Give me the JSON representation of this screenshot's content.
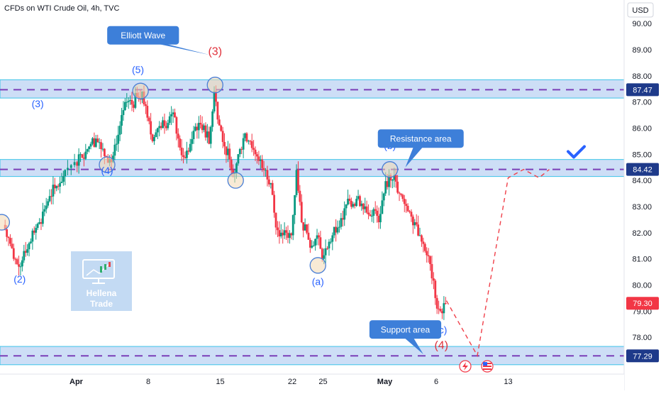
{
  "header": {
    "title": "CFDs on WTI Crude Oil, 4h, TVC",
    "currency_label": "USD"
  },
  "colors": {
    "up": "#089981",
    "down": "#f23645",
    "zone_fill": "#bcd3f3",
    "zone_border": "#3cc4e8",
    "level_dash": "#7b3fb8",
    "wave_label": "#2962ff",
    "wave_label_red": "#e0313b",
    "callout": "#3d7fd9",
    "projection": "#f0404a",
    "check": "#2962ff",
    "price_badge_current": "#f23645",
    "price_badge_level": "#1e3a8a"
  },
  "chart_data": {
    "type": "candlestick",
    "title": "CFDs on WTI Crude Oil, 4h, TVC",
    "ylabel": "USD",
    "ylim": [
      76.7,
      90.9
    ],
    "y_ticks": [
      "78.00",
      "79.00",
      "80.00",
      "81.00",
      "82.00",
      "83.00",
      "84.00",
      "85.00",
      "86.00",
      "87.00",
      "88.00",
      "89.00",
      "90.00"
    ],
    "x_ticks": [
      {
        "label": "Apr",
        "date": "2024-04-01"
      },
      {
        "label": "8",
        "date": "2024-04-08"
      },
      {
        "label": "15",
        "date": "2024-04-15"
      },
      {
        "label": "22",
        "date": "2024-04-22"
      },
      {
        "label": "25",
        "date": "2024-04-25"
      },
      {
        "label": "May",
        "date": "2024-05-01"
      },
      {
        "label": "6",
        "date": "2024-05-06"
      },
      {
        "label": "13",
        "date": "2024-05-13"
      }
    ],
    "price_path": [
      [
        "2024-03-25T00:00",
        82.3
      ],
      [
        "2024-03-25T12:00",
        81.8
      ],
      [
        "2024-03-26T00:00",
        81.0
      ],
      [
        "2024-03-26T12:00",
        80.7
      ],
      [
        "2024-03-27T00:00",
        81.3
      ],
      [
        "2024-03-27T12:00",
        81.6
      ],
      [
        "2024-03-28T00:00",
        82.0
      ],
      [
        "2024-03-28T12:00",
        82.4
      ],
      [
        "2024-03-29T00:00",
        82.9
      ],
      [
        "2024-03-29T12:00",
        83.4
      ],
      [
        "2024-03-30T00:00",
        83.7
      ],
      [
        "2024-03-30T12:00",
        83.9
      ],
      [
        "2024-03-31T00:00",
        84.4
      ],
      [
        "2024-04-01T00:00",
        84.7
      ],
      [
        "2024-04-01T12:00",
        85.0
      ],
      [
        "2024-04-02T00:00",
        85.1
      ],
      [
        "2024-04-02T12:00",
        85.4
      ],
      [
        "2024-04-03T00:00",
        85.6
      ],
      [
        "2024-04-03T12:00",
        85.2
      ],
      [
        "2024-04-04T00:00",
        84.9
      ],
      [
        "2024-04-04T12:00",
        84.7
      ],
      [
        "2024-04-05T00:00",
        85.4
      ],
      [
        "2024-04-05T12:00",
        86.5
      ],
      [
        "2024-04-06T00:00",
        87.0
      ],
      [
        "2024-04-06T12:00",
        86.9
      ],
      [
        "2024-04-07T00:00",
        87.2
      ],
      [
        "2024-04-07T12:00",
        87.4
      ],
      [
        "2024-04-08T00:00",
        86.4
      ],
      [
        "2024-04-08T12:00",
        85.5
      ],
      [
        "2024-04-09T00:00",
        86.0
      ],
      [
        "2024-04-09T12:00",
        86.3
      ],
      [
        "2024-04-10T00:00",
        86.2
      ],
      [
        "2024-04-10T12:00",
        86.6
      ],
      [
        "2024-04-11T00:00",
        85.6
      ],
      [
        "2024-04-11T12:00",
        84.9
      ],
      [
        "2024-04-12T00:00",
        85.1
      ],
      [
        "2024-04-12T12:00",
        85.9
      ],
      [
        "2024-04-13T00:00",
        86.2
      ],
      [
        "2024-04-13T12:00",
        86.1
      ],
      [
        "2024-04-14T00:00",
        85.4
      ],
      [
        "2024-04-14T12:00",
        87.4
      ],
      [
        "2024-04-15T00:00",
        86.1
      ],
      [
        "2024-04-15T12:00",
        85.3
      ],
      [
        "2024-04-16T00:00",
        84.8
      ],
      [
        "2024-04-16T12:00",
        84.3
      ],
      [
        "2024-04-17T00:00",
        85.2
      ],
      [
        "2024-04-17T12:00",
        85.8
      ],
      [
        "2024-04-18T00:00",
        85.5
      ],
      [
        "2024-04-18T12:00",
        85.0
      ],
      [
        "2024-04-19T00:00",
        84.8
      ],
      [
        "2024-04-19T12:00",
        84.4
      ],
      [
        "2024-04-20T00:00",
        83.9
      ],
      [
        "2024-04-20T12:00",
        82.2
      ],
      [
        "2024-04-21T00:00",
        82.0
      ],
      [
        "2024-04-21T12:00",
        82.0
      ],
      [
        "2024-04-22T00:00",
        81.9
      ],
      [
        "2024-04-22T12:00",
        84.4
      ],
      [
        "2024-04-23T00:00",
        82.4
      ],
      [
        "2024-04-23T12:00",
        82.0
      ],
      [
        "2024-04-24T00:00",
        81.5
      ],
      [
        "2024-04-24T12:00",
        81.9
      ],
      [
        "2024-04-25T00:00",
        81.0
      ],
      [
        "2024-04-25T12:00",
        81.4
      ],
      [
        "2024-04-26T00:00",
        81.9
      ],
      [
        "2024-04-26T12:00",
        82.2
      ],
      [
        "2024-04-27T00:00",
        82.5
      ],
      [
        "2024-04-27T12:00",
        83.3
      ],
      [
        "2024-04-28T00:00",
        83.1
      ],
      [
        "2024-04-28T12:00",
        83.4
      ],
      [
        "2024-04-29T00:00",
        82.9
      ],
      [
        "2024-04-29T12:00",
        82.7
      ],
      [
        "2024-04-30T00:00",
        82.9
      ],
      [
        "2024-04-30T12:00",
        82.4
      ],
      [
        "2024-05-01T00:00",
        83.5
      ],
      [
        "2024-05-01T12:00",
        84.2
      ],
      [
        "2024-05-02T00:00",
        84.2
      ],
      [
        "2024-05-02T12:00",
        83.5
      ],
      [
        "2024-05-03T00:00",
        83.1
      ],
      [
        "2024-05-03T12:00",
        82.8
      ],
      [
        "2024-05-04T00:00",
        82.4
      ],
      [
        "2024-05-04T12:00",
        81.9
      ],
      [
        "2024-05-05T00:00",
        81.3
      ],
      [
        "2024-05-05T12:00",
        80.8
      ],
      [
        "2024-05-06T00:00",
        79.5
      ],
      [
        "2024-05-06T12:00",
        79.0
      ],
      [
        "2024-05-07T00:00",
        79.3
      ]
    ],
    "levels": [
      {
        "price": 87.47,
        "label": "87.47",
        "zone": [
          87.15,
          87.85
        ]
      },
      {
        "price": 84.42,
        "label": "84.42",
        "zone": [
          84.15,
          84.8
        ]
      },
      {
        "price": 77.29,
        "label": "77.29",
        "zone": [
          76.95,
          77.65
        ]
      }
    ],
    "current_price": {
      "price": 79.3,
      "label": "79.30"
    },
    "wave_labels": [
      {
        "text": "(5)",
        "date": "2024-04-07T00:00",
        "price": 88.1,
        "color": "blue"
      },
      {
        "text": "(3)",
        "date": "2024-04-14T12:00",
        "price": 88.8,
        "color": "red"
      },
      {
        "text": "(3)",
        "date": "2024-03-28T06:00",
        "price": 86.8,
        "color": "blue"
      },
      {
        "text": "(4)",
        "date": "2024-04-04T00:00",
        "price": 84.25,
        "color": "blue"
      },
      {
        "text": "(2)",
        "date": "2024-03-26T12:00",
        "price": 80.1,
        "color": "blue"
      },
      {
        "text": "(b)",
        "date": "2024-05-01T12:00",
        "price": 85.2,
        "color": "blue"
      },
      {
        "text": "(a)",
        "date": "2024-04-24T12:00",
        "price": 80.0,
        "color": "blue"
      },
      {
        "text": "(c)",
        "date": "2024-05-06T12:00",
        "price": 78.15,
        "color": "blue"
      },
      {
        "text": "(4)",
        "date": "2024-05-06T12:00",
        "price": 77.55,
        "color": "red"
      }
    ],
    "pivot_markers": [
      {
        "date": "2024-03-24T18:00",
        "price": 82.4
      },
      {
        "date": "2024-04-07T06:00",
        "price": 87.42
      },
      {
        "date": "2024-04-14T12:00",
        "price": 87.65
      },
      {
        "date": "2024-04-04T00:00",
        "price": 84.6
      },
      {
        "date": "2024-04-16T12:00",
        "price": 84.0
      },
      {
        "date": "2024-05-01T12:00",
        "price": 84.42
      },
      {
        "date": "2024-04-24T12:00",
        "price": 80.75
      }
    ],
    "callouts": [
      {
        "text": "Elliott Wave",
        "box": [
          "2024-04-07T12:00",
          89.55
        ],
        "target": [
          "2024-04-14T00:00",
          88.8
        ]
      },
      {
        "text": "Resistance area",
        "box": [
          "2024-05-04T12:00",
          85.6
        ],
        "target": [
          "2024-05-03T00:00",
          84.5
        ]
      },
      {
        "text": "Support area",
        "box": [
          "2024-05-03T00:00",
          78.3
        ],
        "target": [
          "2024-05-04T18:00",
          77.35
        ]
      }
    ],
    "projection_path": [
      [
        "2024-05-07T00:00",
        79.4
      ],
      [
        "2024-05-10T00:00",
        77.3
      ],
      [
        "2024-05-13T00:00",
        84.1
      ],
      [
        "2024-05-14T12:00",
        84.42
      ],
      [
        "2024-05-16T00:00",
        84.1
      ],
      [
        "2024-05-17T00:00",
        84.42
      ]
    ],
    "grid": false,
    "legend": "none"
  },
  "watermark": {
    "line1": "Hellena",
    "line2": "Trade"
  }
}
